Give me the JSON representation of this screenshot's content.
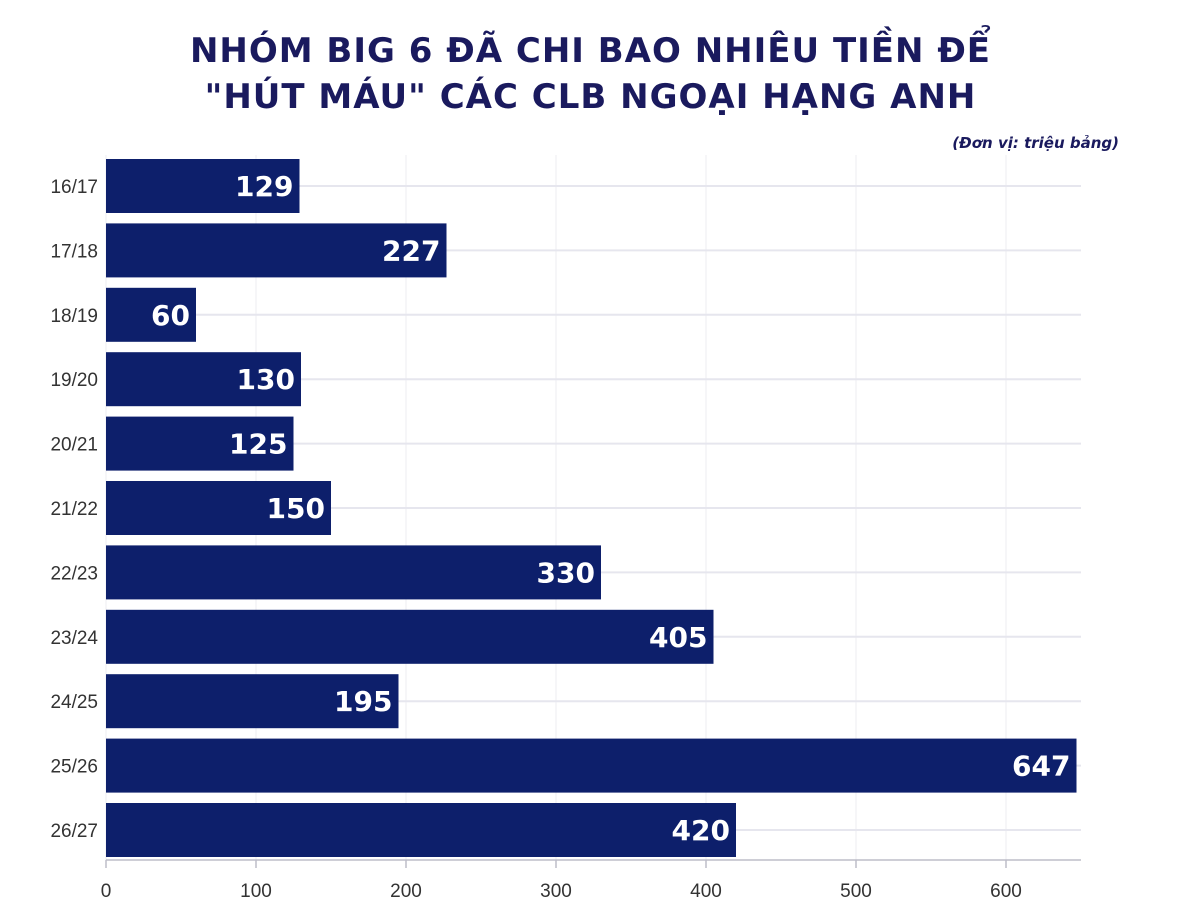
{
  "header": {
    "title_line1": "NHÓM BIG 6 ĐÃ CHI BAO NHIÊU TIỀN ĐỂ",
    "title_line2": "\"HÚT MÁU\" CÁC CLB NGOẠI HẠNG ANH",
    "unit": "(Đơn vị: triệu bảng)"
  },
  "chart_data": {
    "type": "bar",
    "orientation": "horizontal",
    "title": "NHÓM BIG 6 ĐÃ CHI BAO NHIÊU TIỀN ĐỂ \"HÚT MÁU\" CÁC CLB NGOẠI HẠNG ANH",
    "unit": "(Đơn vị: triệu bảng)",
    "categories": [
      "16/17",
      "17/18",
      "18/19",
      "19/20",
      "20/21",
      "21/22",
      "22/23",
      "23/24",
      "24/25",
      "25/26",
      "26/27"
    ],
    "values": [
      129,
      227,
      60,
      130,
      125,
      150,
      330,
      405,
      195,
      647,
      420
    ],
    "x_ticks": [
      0,
      100,
      200,
      300,
      400,
      500,
      600
    ],
    "xlim": [
      0,
      650
    ],
    "xlabel": "",
    "ylabel": "",
    "grid": true,
    "colors": {
      "bar": "#0d1f6b",
      "label": "#ffffff",
      "title": "#1a1a5e"
    }
  }
}
